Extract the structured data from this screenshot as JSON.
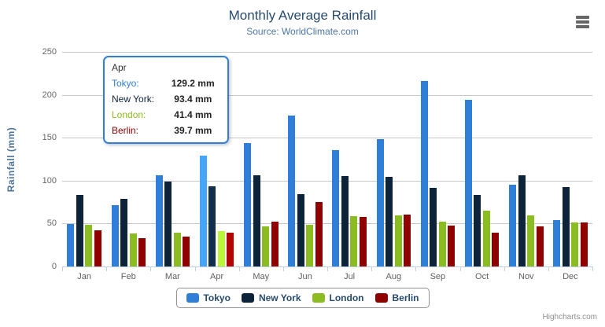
{
  "chart": {
    "title": "Monthly Average Rainfall",
    "subtitle": "Source: WorldClimate.com",
    "yaxis_title": "Rainfall (mm)",
    "credit": "Highcharts.com",
    "title_color": "#274b6d",
    "subtitle_color": "#4d76a8",
    "grid_color": "#c8c8c8",
    "axis_line_color": "#c0d0e0"
  },
  "chart_data": {
    "type": "bar",
    "title": "Monthly Average Rainfall",
    "subtitle": "Source: WorldClimate.com",
    "xlabel": "",
    "ylabel": "Rainfall (mm)",
    "ylim": [
      0,
      250
    ],
    "ytick_step": 50,
    "grid": true,
    "legend_position": "bottom",
    "categories": [
      "Jan",
      "Feb",
      "Mar",
      "Apr",
      "May",
      "Jun",
      "Jul",
      "Aug",
      "Sep",
      "Oct",
      "Nov",
      "Dec"
    ],
    "series": [
      {
        "name": "Tokyo",
        "color": "#2f7ed8",
        "values": [
          49.9,
          71.5,
          106.4,
          129.2,
          144.0,
          176.0,
          135.6,
          148.5,
          216.4,
          194.1,
          95.6,
          54.4
        ]
      },
      {
        "name": "New York",
        "color": "#0d233a",
        "values": [
          83.6,
          78.8,
          98.5,
          93.4,
          106.0,
          84.5,
          105.0,
          104.3,
          91.2,
          83.5,
          106.6,
          92.3
        ]
      },
      {
        "name": "London",
        "color": "#8bbc21",
        "values": [
          48.9,
          38.8,
          39.3,
          41.4,
          47.0,
          48.3,
          59.0,
          59.6,
          52.4,
          65.2,
          59.3,
          51.2
        ]
      },
      {
        "name": "Berlin",
        "color": "#910000",
        "values": [
          42.4,
          33.2,
          34.5,
          39.7,
          52.6,
          75.5,
          57.4,
          60.4,
          47.6,
          39.1,
          46.8,
          51.1
        ]
      }
    ]
  },
  "tooltip": {
    "category": "Apr",
    "border_color": "#2f7ed8",
    "rows": [
      {
        "label": "Tokyo:",
        "value": "129.2 mm",
        "color": "#2f7ed8"
      },
      {
        "label": "New York:",
        "value": "93.4 mm",
        "color": "#0d233a"
      },
      {
        "label": "London:",
        "value": "41.4 mm",
        "color": "#8bbc21"
      },
      {
        "label": "Berlin:",
        "value": "39.7 mm",
        "color": "#910000"
      }
    ]
  }
}
